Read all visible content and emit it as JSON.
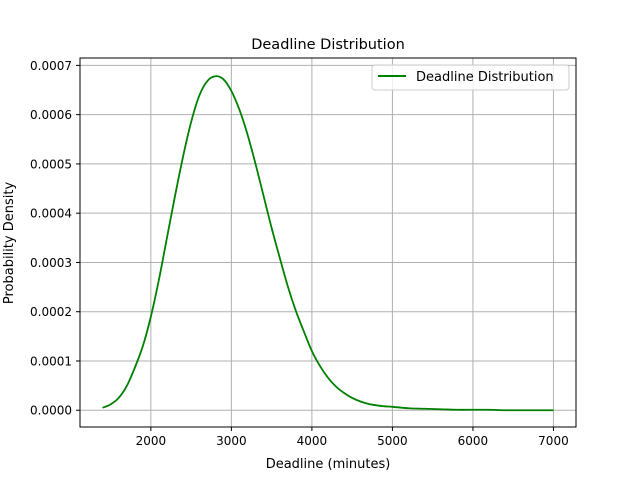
{
  "chart_data": {
    "type": "line",
    "title": "Deadline Distribution",
    "xlabel": "Deadline (minutes)",
    "ylabel": "Probability Density",
    "xlim": [
      1120,
      7280
    ],
    "ylim": [
      -3.4e-05,
      0.000715
    ],
    "xticks": [
      2000,
      3000,
      4000,
      5000,
      6000,
      7000
    ],
    "xtick_labels": [
      "2000",
      "3000",
      "4000",
      "5000",
      "6000",
      "7000"
    ],
    "yticks": [
      0.0,
      0.0001,
      0.0002,
      0.0003,
      0.0004,
      0.0005,
      0.0006,
      0.0007
    ],
    "ytick_labels": [
      "0.0000",
      "0.0001",
      "0.0002",
      "0.0003",
      "0.0004",
      "0.0005",
      "0.0006",
      "0.0007"
    ],
    "grid": true,
    "legend": {
      "position": "top-right",
      "entries": [
        "Deadline Distribution"
      ]
    },
    "series": [
      {
        "name": "Deadline Distribution",
        "color": "#008000",
        "x": [
          1400,
          1500,
          1600,
          1700,
          1800,
          1900,
          2000,
          2100,
          2200,
          2300,
          2400,
          2500,
          2600,
          2700,
          2800,
          2900,
          3000,
          3100,
          3200,
          3300,
          3400,
          3500,
          3600,
          3700,
          3800,
          3900,
          4000,
          4100,
          4200,
          4300,
          4400,
          4500,
          4600,
          4700,
          4800,
          4900,
          5000,
          5200,
          5400,
          5600,
          5800,
          6000,
          6200,
          6400,
          6600,
          6800,
          7000
        ],
        "y": [
          5e-06,
          1.2e-05,
          2.5e-05,
          4.9e-05,
          8.6e-05,
          0.00013,
          0.00019,
          0.000265,
          0.00035,
          0.000435,
          0.000515,
          0.000585,
          0.000638,
          0.000668,
          0.000678,
          0.000672,
          0.000648,
          0.00061,
          0.00056,
          0.0005,
          0.000435,
          0.00037,
          0.00031,
          0.000252,
          0.000202,
          0.00016,
          0.00012,
          9e-05,
          6.6e-05,
          4.8e-05,
          3.5e-05,
          2.5e-05,
          1.8e-05,
          1.3e-05,
          1e-05,
          8e-06,
          7e-06,
          4e-06,
          3e-06,
          2e-06,
          1e-06,
          1e-06,
          1e-06,
          0.0,
          0.0,
          0.0,
          0.0
        ]
      }
    ]
  }
}
